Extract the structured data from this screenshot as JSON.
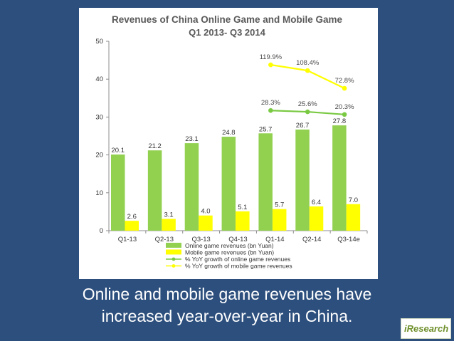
{
  "chart_data": {
    "type": "bar",
    "title": "Revenues of China Online Game and Mobile Game",
    "subtitle": "Q1 2013- Q3 2014",
    "categories": [
      "Q1-13",
      "Q2-13",
      "Q3-13",
      "Q4-13",
      "Q1-14",
      "Q2-14",
      "Q3-14e"
    ],
    "ylim": [
      0,
      50
    ],
    "yticks": [
      0,
      10,
      20,
      30,
      40,
      50
    ],
    "series": [
      {
        "name": "Online game revenues (bn Yuan)",
        "kind": "bar",
        "color": "#92d050",
        "values": [
          20.1,
          21.2,
          23.1,
          24.8,
          25.7,
          26.7,
          27.8
        ],
        "labels": [
          "20.1",
          "21.2",
          "23.1",
          "24.8",
          "25.7",
          "26.7",
          "27.8"
        ]
      },
      {
        "name": "Mobile game revenues (bn Yuan)",
        "kind": "bar",
        "color": "#ffff00",
        "values": [
          2.6,
          3.1,
          4.0,
          5.1,
          5.7,
          6.4,
          7.0
        ],
        "labels": [
          "2.6",
          "3.1",
          "4.0",
          "5.1",
          "5.7",
          "6.4",
          "7.0"
        ]
      },
      {
        "name": "% YoY growth of online game revenues",
        "kind": "line",
        "color": "#7ac943",
        "points": [
          {
            "category": "Q1-14",
            "label": "28.3%",
            "value": 28.3
          },
          {
            "category": "Q2-14",
            "label": "25.6%",
            "value": 25.6
          },
          {
            "category": "Q3-14e",
            "label": "20.3%",
            "value": 20.3
          }
        ]
      },
      {
        "name": "% YoY growth of mobile game revenues",
        "kind": "line",
        "color": "#ffff00",
        "points": [
          {
            "category": "Q1-14",
            "label": "119.9%",
            "value": 119.9
          },
          {
            "category": "Q2-14",
            "label": "108.4%",
            "value": 108.4
          },
          {
            "category": "Q3-14e",
            "label": "72.8%",
            "value": 72.8
          }
        ]
      }
    ],
    "legend_position": "bottom",
    "grid": false
  },
  "caption": {
    "line1": "Online and mobile game revenues have",
    "line2": "increased year-over-year in China."
  },
  "logo": {
    "text": "iResearch"
  },
  "colors": {
    "background": "#2d4f7d",
    "title_text": "#595959",
    "label_text": "#333333",
    "growth_label_text": "#4a4a4a"
  }
}
